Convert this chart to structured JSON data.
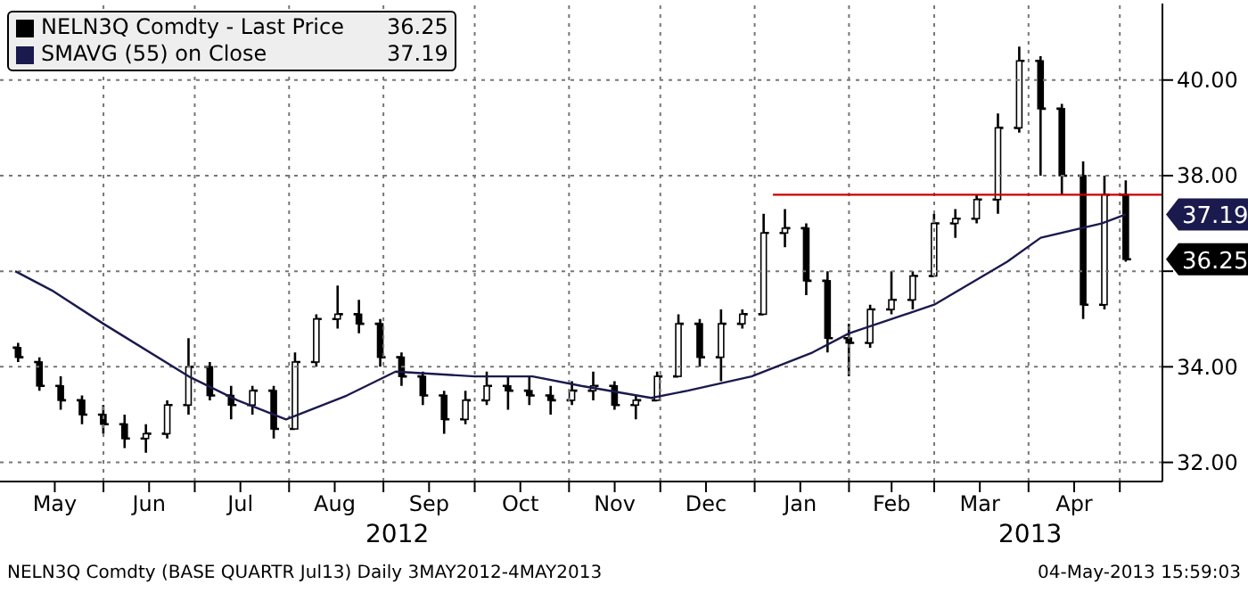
{
  "chart_data": {
    "type": "candlestick",
    "xlim": [
      "2012-04-28",
      "2013-05-15"
    ],
    "ylim": [
      31.6,
      41.6
    ],
    "yticks": [
      {
        "value": 32,
        "label": "32.00"
      },
      {
        "value": 34,
        "label": "34.00"
      },
      {
        "value": 36,
        "label": null
      },
      {
        "value": 38,
        "label": "38.00"
      },
      {
        "value": 40,
        "label": "40.00"
      }
    ],
    "xticks": [
      {
        "value": "2012-05-16",
        "label": "May"
      },
      {
        "value": "2012-06-01",
        "label": null
      },
      {
        "value": "2012-06-16",
        "label": "Jun"
      },
      {
        "value": "2012-07-01",
        "label": null
      },
      {
        "value": "2012-07-16",
        "label": "Jul"
      },
      {
        "value": "2012-08-01",
        "label": null
      },
      {
        "value": "2012-08-16",
        "label": "Aug"
      },
      {
        "value": "2012-09-01",
        "label": null
      },
      {
        "value": "2012-09-16",
        "label": "Sep"
      },
      {
        "value": "2012-10-01",
        "label": null
      },
      {
        "value": "2012-10-16",
        "label": "Oct"
      },
      {
        "value": "2012-11-01",
        "label": null
      },
      {
        "value": "2012-11-16",
        "label": "Nov"
      },
      {
        "value": "2012-12-01",
        "label": null
      },
      {
        "value": "2012-12-16",
        "label": "Dec"
      },
      {
        "value": "2013-01-01",
        "label": null
      },
      {
        "value": "2013-01-16",
        "label": "Jan"
      },
      {
        "value": "2013-02-01",
        "label": null
      },
      {
        "value": "2013-02-15",
        "label": "Feb"
      },
      {
        "value": "2013-03-01",
        "label": null
      },
      {
        "value": "2013-03-16",
        "label": "Mar"
      },
      {
        "value": "2013-04-01",
        "label": null
      },
      {
        "value": "2013-04-16",
        "label": "Apr"
      },
      {
        "value": "2013-05-01",
        "label": null
      }
    ],
    "grid": true,
    "legend": "top left",
    "series": [
      {
        "name": "NELN3Q Comdty - Last Price",
        "color": "#000000",
        "x": [
          "2012-05-04",
          "2012-05-11",
          "2012-05-18",
          "2012-05-25",
          "2012-06-01",
          "2012-06-08",
          "2012-06-15",
          "2012-06-22",
          "2012-06-29",
          "2012-07-06",
          "2012-07-13",
          "2012-07-20",
          "2012-07-27",
          "2012-08-03",
          "2012-08-10",
          "2012-08-17",
          "2012-08-24",
          "2012-08-31",
          "2012-09-07",
          "2012-09-14",
          "2012-09-21",
          "2012-09-28",
          "2012-10-05",
          "2012-10-12",
          "2012-10-19",
          "2012-10-26",
          "2012-11-02",
          "2012-11-09",
          "2012-11-16",
          "2012-11-23",
          "2012-11-30",
          "2012-12-07",
          "2012-12-14",
          "2012-12-21",
          "2012-12-28",
          "2013-01-04",
          "2013-01-11",
          "2013-01-18",
          "2013-01-25",
          "2013-02-01",
          "2013-02-08",
          "2013-02-15",
          "2013-02-22",
          "2013-03-01",
          "2013-03-08",
          "2013-03-15",
          "2013-03-22",
          "2013-03-29",
          "2013-04-05",
          "2013-04-12",
          "2013-04-19",
          "2013-04-26",
          "2013-05-03"
        ],
        "ohlc": [
          [
            34.4,
            34.5,
            34.1,
            34.2
          ],
          [
            34.1,
            34.2,
            33.5,
            33.6
          ],
          [
            33.6,
            33.8,
            33.1,
            33.3
          ],
          [
            33.3,
            33.4,
            32.8,
            33.0
          ],
          [
            33.0,
            33.2,
            32.6,
            32.8
          ],
          [
            32.8,
            33.0,
            32.3,
            32.5
          ],
          [
            32.5,
            32.8,
            32.2,
            32.6
          ],
          [
            32.6,
            33.3,
            32.5,
            33.2
          ],
          [
            33.2,
            34.6,
            33.0,
            34.0
          ],
          [
            34.0,
            34.1,
            33.3,
            33.4
          ],
          [
            33.4,
            33.6,
            32.9,
            33.2
          ],
          [
            33.2,
            33.6,
            33.0,
            33.5
          ],
          [
            33.5,
            33.6,
            32.5,
            32.7
          ],
          [
            32.7,
            34.3,
            32.7,
            34.1
          ],
          [
            34.1,
            35.1,
            34.0,
            35.0
          ],
          [
            35.0,
            35.7,
            34.8,
            35.1
          ],
          [
            35.1,
            35.4,
            34.7,
            34.9
          ],
          [
            34.9,
            35.0,
            34.0,
            34.2
          ],
          [
            34.2,
            34.3,
            33.6,
            33.8
          ],
          [
            33.8,
            33.9,
            33.2,
            33.4
          ],
          [
            33.4,
            33.5,
            32.6,
            32.9
          ],
          [
            32.9,
            33.5,
            32.8,
            33.3
          ],
          [
            33.3,
            33.9,
            33.2,
            33.6
          ],
          [
            33.6,
            33.8,
            33.1,
            33.5
          ],
          [
            33.5,
            33.8,
            33.2,
            33.4
          ],
          [
            33.4,
            33.6,
            33.0,
            33.3
          ],
          [
            33.3,
            33.7,
            33.2,
            33.5
          ],
          [
            33.5,
            33.9,
            33.3,
            33.6
          ],
          [
            33.6,
            33.7,
            33.1,
            33.2
          ],
          [
            33.2,
            33.4,
            32.9,
            33.3
          ],
          [
            33.3,
            33.9,
            33.3,
            33.8
          ],
          [
            33.8,
            35.1,
            33.8,
            34.9
          ],
          [
            34.9,
            35.0,
            34.0,
            34.2
          ],
          [
            34.2,
            35.2,
            33.7,
            34.9
          ],
          [
            34.9,
            35.2,
            34.8,
            35.1
          ],
          [
            35.1,
            37.2,
            35.1,
            36.8
          ],
          [
            36.8,
            37.3,
            36.5,
            36.9
          ],
          [
            36.9,
            37.0,
            35.5,
            35.8
          ],
          [
            35.8,
            36.0,
            34.3,
            34.6
          ],
          [
            34.6,
            34.9,
            33.8,
            34.5
          ],
          [
            34.5,
            35.3,
            34.4,
            35.2
          ],
          [
            35.2,
            36.0,
            35.1,
            35.4
          ],
          [
            35.4,
            36.0,
            35.2,
            35.9
          ],
          [
            35.9,
            37.2,
            35.9,
            37.0
          ],
          [
            37.0,
            37.3,
            36.7,
            37.1
          ],
          [
            37.1,
            37.6,
            37.0,
            37.5
          ],
          [
            37.5,
            39.3,
            37.2,
            39.0
          ],
          [
            39.0,
            40.7,
            38.9,
            40.4
          ],
          [
            40.4,
            40.5,
            38.0,
            39.4
          ],
          [
            39.4,
            39.5,
            37.6,
            38.0
          ],
          [
            38.0,
            38.3,
            35.0,
            35.3
          ],
          [
            35.3,
            38.0,
            35.2,
            37.6
          ],
          [
            37.6,
            37.9,
            36.2,
            36.25
          ]
        ]
      },
      {
        "type": "line",
        "name": "SMAVG (55) on Close",
        "color": "#1a1a4e",
        "x": [
          "2012-05-03",
          "2012-05-15",
          "2012-06-01",
          "2012-06-29",
          "2012-07-15",
          "2012-07-31",
          "2012-08-20",
          "2012-09-05",
          "2012-10-01",
          "2012-10-20",
          "2012-11-05",
          "2012-11-28",
          "2012-12-10",
          "2012-12-31",
          "2013-01-20",
          "2013-02-01",
          "2013-03-01",
          "2013-03-25",
          "2013-04-05",
          "2013-04-25",
          "2013-05-03"
        ],
        "values": [
          36.0,
          35.6,
          34.9,
          33.8,
          33.3,
          32.9,
          33.4,
          33.9,
          33.8,
          33.8,
          33.6,
          33.35,
          33.5,
          33.8,
          34.3,
          34.7,
          35.3,
          36.2,
          36.7,
          37.0,
          37.19
        ]
      },
      {
        "type": "line",
        "color": "#cc0000",
        "x": [
          "2013-01-07",
          "2013-05-15"
        ],
        "values": [
          37.6,
          37.6
        ]
      }
    ],
    "annotations": [
      {
        "text": "36.25",
        "x": "2013-05-03",
        "y": 36.25
      },
      {
        "text": "37.19",
        "x": "2013-05-03",
        "y": 37.19
      },
      "2012",
      "2013",
      "NELN3Q Comdty (BASE QUARTR Jul13) Daily 3MAY2012-4MAY2013",
      "04-May-2013 15:59:03"
    ]
  }
}
